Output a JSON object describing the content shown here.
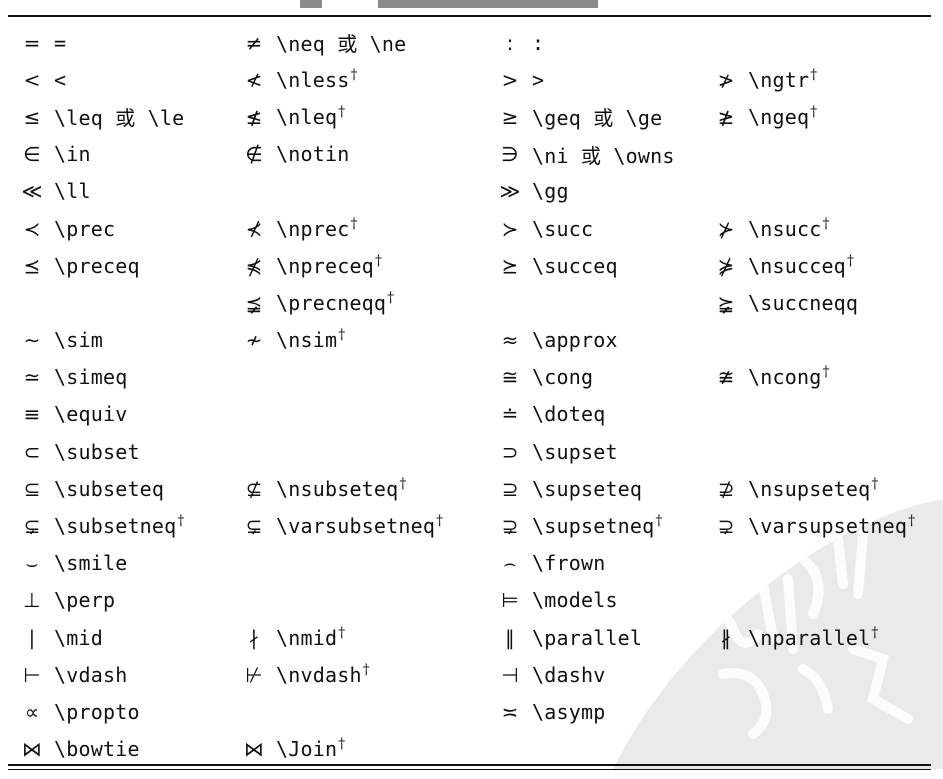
{
  "table": {
    "rows": [
      [
        {
          "s": "=",
          "c": "="
        },
        {
          "s": "≠",
          "c": "\\neq 或 \\ne"
        },
        {
          "s": ":",
          "c": ":"
        },
        {
          "s": "",
          "c": ""
        }
      ],
      [
        {
          "s": "<",
          "c": "<"
        },
        {
          "s": "≮",
          "c": "\\nless†"
        },
        {
          "s": ">",
          "c": ">"
        },
        {
          "s": "≯",
          "c": "\\ngtr†"
        }
      ],
      [
        {
          "s": "≤",
          "c": "\\leq 或 \\le"
        },
        {
          "s": "≰",
          "c": "\\nleq†"
        },
        {
          "s": "≥",
          "c": "\\geq 或 \\ge"
        },
        {
          "s": "≱",
          "c": "\\ngeq†"
        }
      ],
      [
        {
          "s": "∈",
          "c": "\\in"
        },
        {
          "s": "∉",
          "c": "\\notin"
        },
        {
          "s": "∋",
          "c": "\\ni 或 \\owns"
        },
        {
          "s": "",
          "c": ""
        }
      ],
      [
        {
          "s": "≪",
          "c": "\\ll"
        },
        {
          "s": "",
          "c": ""
        },
        {
          "s": "≫",
          "c": "\\gg"
        },
        {
          "s": "",
          "c": ""
        }
      ],
      [
        {
          "s": "≺",
          "c": "\\prec"
        },
        {
          "s": "⊀",
          "c": "\\nprec†"
        },
        {
          "s": "≻",
          "c": "\\succ"
        },
        {
          "s": "⊁",
          "c": "\\nsucc†"
        }
      ],
      [
        {
          "s": "⪯",
          "c": "\\preceq"
        },
        {
          "s": "⋠",
          "c": "\\npreceq†"
        },
        {
          "s": "⪰",
          "c": "\\succeq"
        },
        {
          "s": "⋡",
          "c": "\\nsucceq†"
        }
      ],
      [
        {
          "s": "",
          "c": ""
        },
        {
          "s": "⪵",
          "c": "\\precneqq†"
        },
        {
          "s": "",
          "c": ""
        },
        {
          "s": "⪶",
          "c": "\\succneqq"
        }
      ],
      [
        {
          "s": "∼",
          "c": "\\sim"
        },
        {
          "s": "≁",
          "c": "\\nsim†"
        },
        {
          "s": "≈",
          "c": "\\approx"
        },
        {
          "s": "",
          "c": ""
        }
      ],
      [
        {
          "s": "≃",
          "c": "\\simeq"
        },
        {
          "s": "",
          "c": ""
        },
        {
          "s": "≅",
          "c": "\\cong"
        },
        {
          "s": "≇",
          "c": "\\ncong†"
        }
      ],
      [
        {
          "s": "≡",
          "c": "\\equiv"
        },
        {
          "s": "",
          "c": ""
        },
        {
          "s": "≐",
          "c": "\\doteq"
        },
        {
          "s": "",
          "c": ""
        }
      ],
      [
        {
          "s": "⊂",
          "c": "\\subset"
        },
        {
          "s": "",
          "c": ""
        },
        {
          "s": "⊃",
          "c": "\\supset"
        },
        {
          "s": "",
          "c": ""
        }
      ],
      [
        {
          "s": "⊆",
          "c": "\\subseteq"
        },
        {
          "s": "⊈",
          "c": "\\nsubseteq†"
        },
        {
          "s": "⊇",
          "c": "\\supseteq"
        },
        {
          "s": "⊉",
          "c": "\\nsupseteq†"
        }
      ],
      [
        {
          "s": "⊊",
          "c": "\\subsetneq†"
        },
        {
          "s": "⊊",
          "c": "\\varsubsetneq†"
        },
        {
          "s": "⊋",
          "c": "\\supsetneq†"
        },
        {
          "s": "⊋",
          "c": "\\varsupsetneq†"
        }
      ],
      [
        {
          "s": "⌣",
          "c": "\\smile"
        },
        {
          "s": "",
          "c": ""
        },
        {
          "s": "⌢",
          "c": "\\frown"
        },
        {
          "s": "",
          "c": ""
        }
      ],
      [
        {
          "s": "⊥",
          "c": "\\perp"
        },
        {
          "s": "",
          "c": ""
        },
        {
          "s": "⊨",
          "c": "\\models"
        },
        {
          "s": "",
          "c": ""
        }
      ],
      [
        {
          "s": "∣",
          "c": "\\mid"
        },
        {
          "s": "∤",
          "c": "\\nmid†"
        },
        {
          "s": "∥",
          "c": "\\parallel"
        },
        {
          "s": "∦",
          "c": "\\nparallel†"
        }
      ],
      [
        {
          "s": "⊢",
          "c": "\\vdash"
        },
        {
          "s": "⊬",
          "c": "\\nvdash†"
        },
        {
          "s": "⊣",
          "c": "\\dashv"
        },
        {
          "s": "",
          "c": ""
        }
      ],
      [
        {
          "s": "∝",
          "c": "\\propto"
        },
        {
          "s": "",
          "c": ""
        },
        {
          "s": "≍",
          "c": "\\asymp"
        },
        {
          "s": "",
          "c": ""
        }
      ],
      [
        {
          "s": "⋈",
          "c": "\\bowtie"
        },
        {
          "s": "⋈",
          "c": "\\Join†"
        },
        {
          "s": "",
          "c": ""
        },
        {
          "s": "",
          "c": ""
        }
      ]
    ]
  }
}
